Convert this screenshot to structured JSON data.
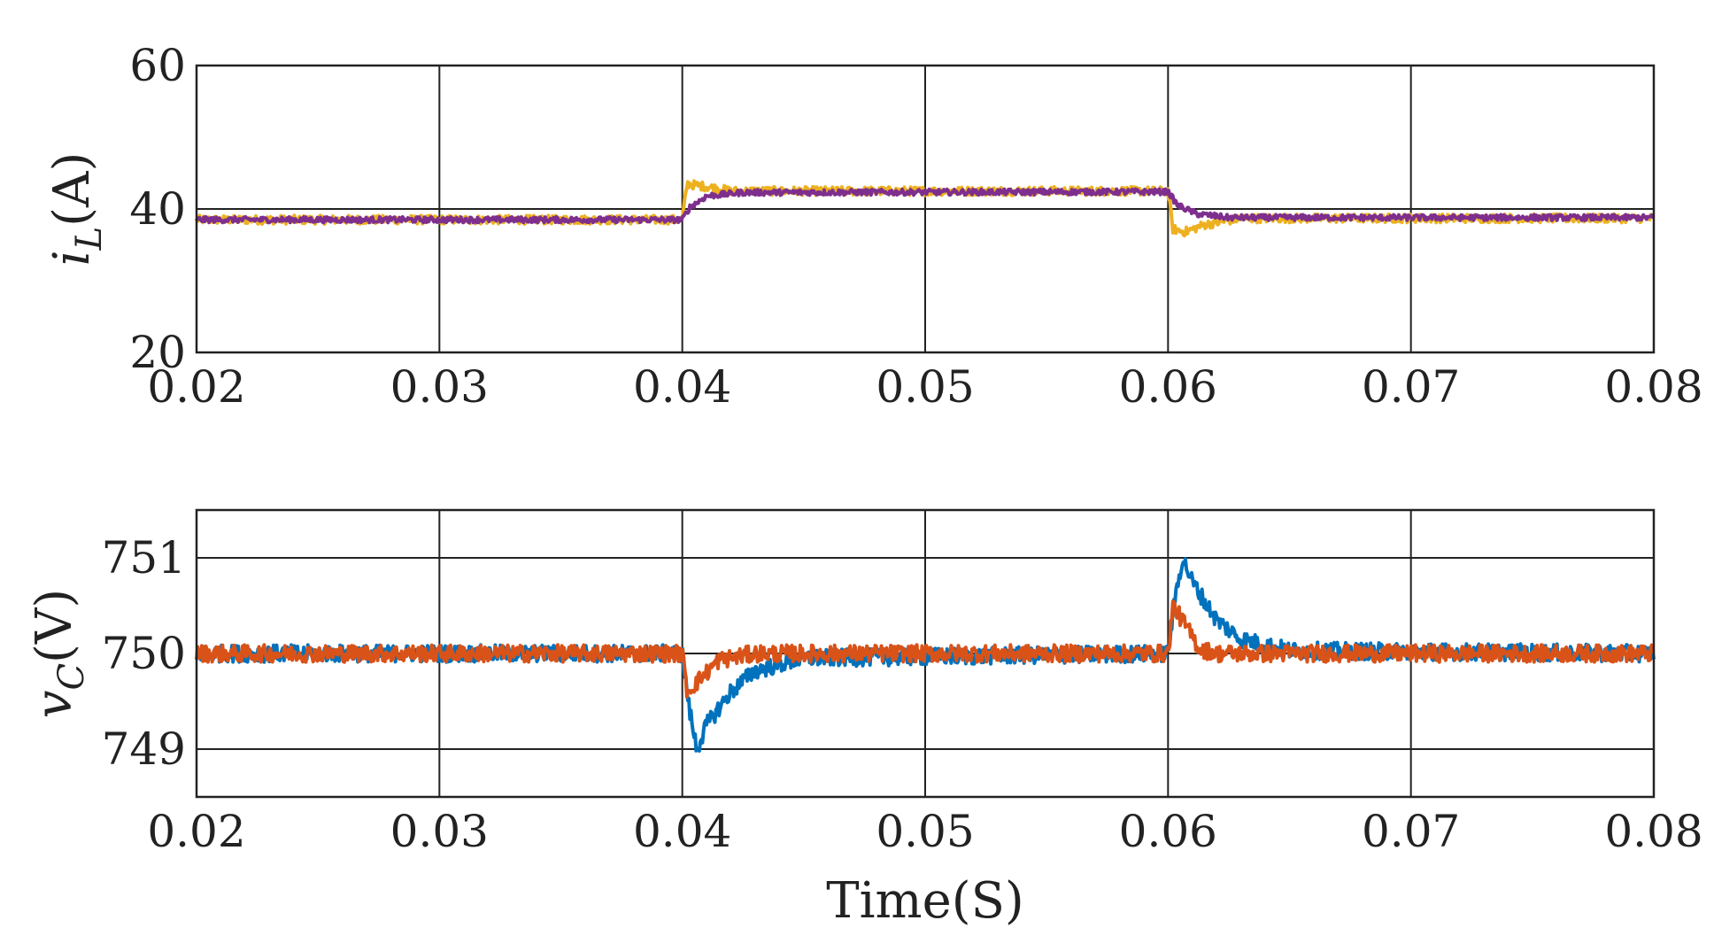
{
  "chart_data": [
    {
      "type": "line",
      "title": "",
      "xlabel": "",
      "ylabel_main": "i",
      "ylabel_sub": "L",
      "ylabel_unit": "(A)",
      "xlim": [
        0.02,
        0.08
      ],
      "ylim": [
        20,
        60
      ],
      "xticks": [
        0.02,
        0.03,
        0.04,
        0.05,
        0.06,
        0.07,
        0.08
      ],
      "xtick_labels": [
        "0.02",
        "0.03",
        "0.04",
        "0.05",
        "0.06",
        "0.07",
        "0.08"
      ],
      "yticks": [
        20,
        40,
        60
      ],
      "ytick_labels": [
        "20",
        "40",
        "60"
      ],
      "grid": true,
      "series": [
        {
          "name": "series-yellow",
          "color": "#EDB120",
          "noise": 0.6,
          "points": [
            [
              0.02,
              38.5
            ],
            [
              0.04,
              38.5
            ],
            [
              0.0402,
              43.5
            ],
            [
              0.0412,
              43.0
            ],
            [
              0.042,
              42.5
            ],
            [
              0.06,
              42.5
            ],
            [
              0.0602,
              37.2
            ],
            [
              0.0607,
              36.8
            ],
            [
              0.0615,
              37.8
            ],
            [
              0.063,
              38.7
            ],
            [
              0.08,
              38.7
            ]
          ]
        },
        {
          "name": "series-purple",
          "color": "#7E2F8E",
          "noise": 0.4,
          "points": [
            [
              0.02,
              38.5
            ],
            [
              0.04,
              38.5
            ],
            [
              0.0403,
              40.2
            ],
            [
              0.041,
              41.8
            ],
            [
              0.0425,
              42.3
            ],
            [
              0.06,
              42.4
            ],
            [
              0.0604,
              40.5
            ],
            [
              0.0612,
              39.3
            ],
            [
              0.0625,
              38.8
            ],
            [
              0.08,
              38.8
            ]
          ]
        }
      ]
    },
    {
      "type": "line",
      "title": "",
      "xlabel": "Time(S)",
      "ylabel_main": "v",
      "ylabel_sub": "C",
      "ylabel_unit": "(V)",
      "xlim": [
        0.02,
        0.08
      ],
      "ylim": [
        748.5,
        751.5
      ],
      "xticks": [
        0.02,
        0.03,
        0.04,
        0.05,
        0.06,
        0.07,
        0.08
      ],
      "xtick_labels": [
        "0.02",
        "0.03",
        "0.04",
        "0.05",
        "0.06",
        "0.07",
        "0.08"
      ],
      "yticks": [
        749,
        750,
        751
      ],
      "ytick_labels": [
        "749",
        "750",
        "751"
      ],
      "grid": true,
      "series": [
        {
          "name": "series-blue",
          "color": "#0072BD",
          "noise": 0.09,
          "points": [
            [
              0.02,
              750.0
            ],
            [
              0.04,
              750.0
            ],
            [
              0.0403,
              749.4
            ],
            [
              0.0406,
              749.0
            ],
            [
              0.041,
              749.25
            ],
            [
              0.042,
              749.6
            ],
            [
              0.043,
              749.82
            ],
            [
              0.045,
              749.95
            ],
            [
              0.06,
              750.0
            ],
            [
              0.0603,
              750.6
            ],
            [
              0.0606,
              751.0
            ],
            [
              0.061,
              750.75
            ],
            [
              0.062,
              750.35
            ],
            [
              0.063,
              750.15
            ],
            [
              0.065,
              750.03
            ],
            [
              0.08,
              750.0
            ]
          ]
        },
        {
          "name": "series-orange",
          "color": "#D95319",
          "noise": 0.09,
          "points": [
            [
              0.02,
              750.0
            ],
            [
              0.04,
              750.0
            ],
            [
              0.0402,
              749.6
            ],
            [
              0.041,
              749.8
            ],
            [
              0.0415,
              749.93
            ],
            [
              0.043,
              750.0
            ],
            [
              0.06,
              750.0
            ],
            [
              0.0602,
              750.5
            ],
            [
              0.0607,
              750.3
            ],
            [
              0.0613,
              750.05
            ],
            [
              0.062,
              750.0
            ],
            [
              0.08,
              750.0
            ]
          ]
        }
      ]
    }
  ]
}
